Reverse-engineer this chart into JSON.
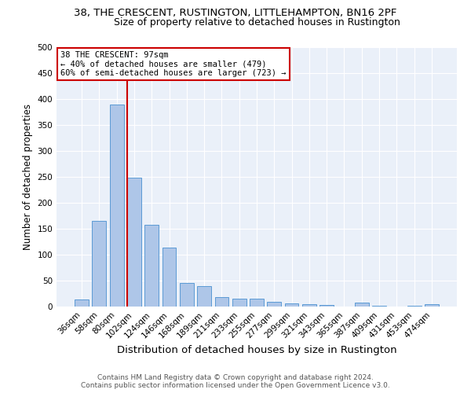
{
  "title1": "38, THE CRESCENT, RUSTINGTON, LITTLEHAMPTON, BN16 2PF",
  "title2": "Size of property relative to detached houses in Rustington",
  "xlabel": "Distribution of detached houses by size in Rustington",
  "ylabel": "Number of detached properties",
  "categories": [
    "36sqm",
    "58sqm",
    "80sqm",
    "102sqm",
    "124sqm",
    "146sqm",
    "168sqm",
    "189sqm",
    "211sqm",
    "233sqm",
    "255sqm",
    "277sqm",
    "299sqm",
    "321sqm",
    "343sqm",
    "365sqm",
    "387sqm",
    "409sqm",
    "431sqm",
    "453sqm",
    "474sqm"
  ],
  "values": [
    14,
    165,
    390,
    248,
    157,
    114,
    45,
    40,
    18,
    15,
    15,
    9,
    6,
    5,
    3,
    0,
    7,
    1,
    0,
    1,
    5
  ],
  "bar_color": "#aec6e8",
  "bar_edge_color": "#5b9bd5",
  "property_line_label": "38 THE CRESCENT: 97sqm",
  "annotation_line1": "← 40% of detached houses are smaller (479)",
  "annotation_line2": "60% of semi-detached houses are larger (723) →",
  "annotation_box_color": "#ffffff",
  "annotation_box_edge": "#cc0000",
  "vline_color": "#cc0000",
  "vline_x": 2.6,
  "ylim": [
    0,
    500
  ],
  "yticks": [
    0,
    50,
    100,
    150,
    200,
    250,
    300,
    350,
    400,
    450,
    500
  ],
  "background_color": "#eaf0f9",
  "footer1": "Contains HM Land Registry data © Crown copyright and database right 2024.",
  "footer2": "Contains public sector information licensed under the Open Government Licence v3.0.",
  "title1_fontsize": 9.5,
  "title2_fontsize": 9,
  "xlabel_fontsize": 9.5,
  "ylabel_fontsize": 8.5,
  "tick_fontsize": 7.5,
  "footer_fontsize": 6.5,
  "ann_fontsize": 7.5
}
